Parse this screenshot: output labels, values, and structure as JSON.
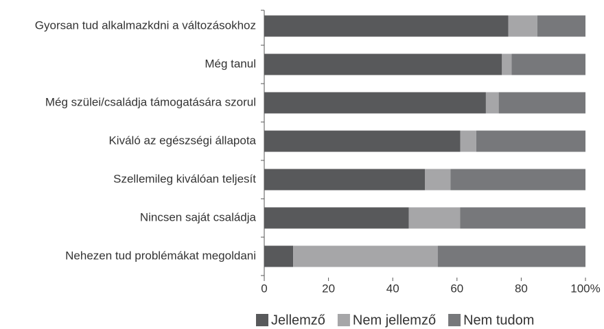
{
  "chart_data": {
    "type": "stacked_barh",
    "categories": [
      "Gyorsan tud alkalmazkdni a változásokhoz",
      "Még tanul",
      "Még szülei/családja támogatására szorul",
      "Kiváló az egészségi állapota",
      "Szellemileg kiválóan teljesít",
      "Nincsen saját családja",
      "Nehezen tud problémákat megoldani"
    ],
    "series": [
      {
        "name": "Jellemző",
        "color": "#58595b",
        "values": [
          76,
          74,
          69,
          61,
          50,
          45,
          9
        ]
      },
      {
        "name": "Nem jellemző",
        "color": "#a6a6a8",
        "values": [
          9,
          3,
          4,
          5,
          8,
          16,
          45
        ]
      },
      {
        "name": "Nem tudom",
        "color": "#77787b",
        "values": [
          15,
          23,
          27,
          34,
          42,
          39,
          46
        ]
      }
    ],
    "xlim": [
      0,
      100
    ],
    "xticks": [
      0,
      20,
      40,
      60,
      80,
      {
        "value": 100,
        "label": "100%"
      }
    ],
    "legend": "bottom"
  }
}
